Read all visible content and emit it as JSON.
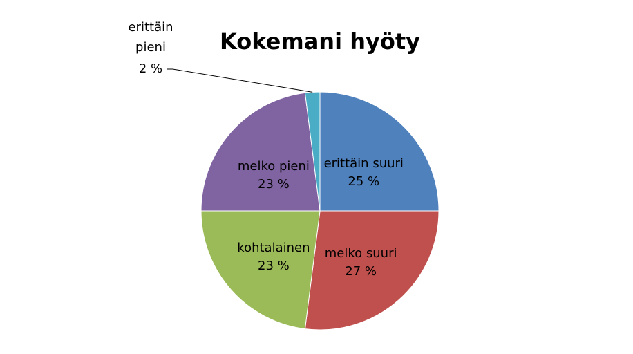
{
  "chart_data": {
    "type": "pie",
    "title": "Kokemani hyöty",
    "categories": [
      "erittäin suuri",
      "melko suuri",
      "kohtalainen",
      "melko pieni",
      "erittäin pieni"
    ],
    "values": [
      25,
      27,
      23,
      23,
      2
    ],
    "value_labels": [
      "25 %",
      "27 %",
      "23 %",
      "23 %",
      "2 %"
    ],
    "colors": [
      "#4f81bd",
      "#c0504d",
      "#9bbb59",
      "#8064a2",
      "#4bacc6"
    ]
  }
}
